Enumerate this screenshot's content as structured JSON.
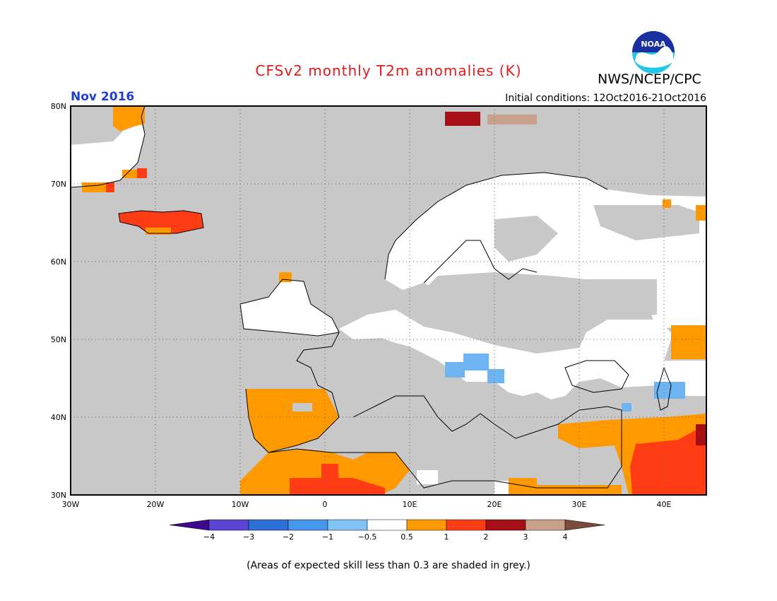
{
  "header": {
    "title": "CFSv2 monthly T2m anomalies (K)",
    "agency": "NWS/NCEP/CPC",
    "month": "Nov 2016",
    "initial_conditions": "Initial conditions: 12Oct2016-21Oct2016"
  },
  "logo": {
    "text": "NOAA",
    "icon": "noaa-logo-icon"
  },
  "map": {
    "lon_labels": [
      "30W",
      "20W",
      "10W",
      "0",
      "10E",
      "20E",
      "30E",
      "40E"
    ],
    "lat_labels": [
      "80N",
      "70N",
      "60N",
      "50N",
      "40N",
      "30N"
    ],
    "lon_range": [
      -30,
      45
    ],
    "lat_range": [
      30,
      80
    ],
    "grid": true,
    "colors": {
      "grey": "#c8c8c8",
      "white": "#ffffff",
      "orange": "#ff9900",
      "red": "#ff3c14",
      "darkred": "#a50f15",
      "tan": "#c8a08c",
      "lightblue": "#6eb4f0"
    }
  },
  "legend": {
    "labels": [
      "−4",
      "−3",
      "−2",
      "−1",
      "−0.5",
      "0.5",
      "1",
      "2",
      "3",
      "4"
    ],
    "colors": [
      "#3c0a8c",
      "#5a46d2",
      "#2d6ed7",
      "#4696eb",
      "#82c3f5",
      "#ffffff",
      "#ff9900",
      "#ff3c14",
      "#a50f15",
      "#c8a08c",
      "#7a4a3a"
    ]
  },
  "footnote": "(Areas of expected skill less than 0.3 are shaded in grey.)"
}
